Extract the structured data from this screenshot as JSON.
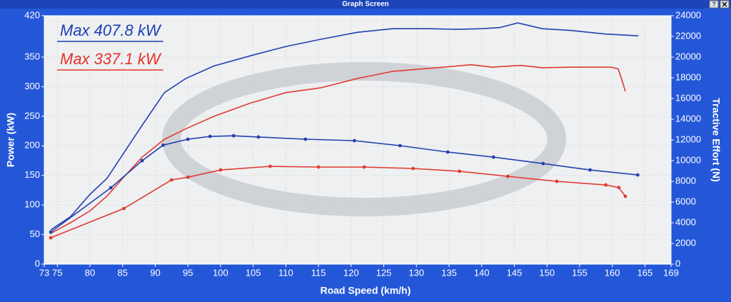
{
  "window": {
    "title": "Graph Screen",
    "help": "?"
  },
  "chart_data": {
    "type": "line",
    "xlabel": "Road Speed (km/h)",
    "ylabel": "Power (kW)",
    "y2label": "Tractive Effort (N)",
    "xlim": [
      73,
      169
    ],
    "xticks": [
      73,
      75,
      80,
      85,
      90,
      95,
      100,
      105,
      110,
      115,
      120,
      125,
      130,
      135,
      140,
      145,
      150,
      155,
      160,
      165,
      169
    ],
    "ylim": [
      0,
      420
    ],
    "yticks": [
      0,
      50,
      100,
      150,
      200,
      250,
      300,
      350,
      420
    ],
    "y2lim": [
      0,
      24000
    ],
    "y2ticks": [
      0,
      2000,
      4000,
      6000,
      8000,
      10000,
      12000,
      14000,
      16000,
      18000,
      20000,
      22000,
      24000
    ],
    "grid": true,
    "annotations": [
      {
        "text": "Max 407.8 kW",
        "color": "#1c3fb4"
      },
      {
        "text": "Max 337.1 kW",
        "color": "#e8302c"
      }
    ],
    "series": [
      {
        "color": "#2340b0",
        "axis": "y",
        "x": [
          74,
          77,
          80,
          82.6,
          85,
          88,
          91.4,
          94.7,
          99,
          104.5,
          110,
          115.3,
          121,
          126.4,
          132,
          136.2,
          140,
          142.8,
          145.5,
          149.3,
          153.7,
          159,
          164
        ],
        "values": [
          58,
          80,
          118,
          145,
          185,
          235,
          290,
          314,
          335,
          352,
          368,
          380,
          392,
          398,
          398,
          397,
          398,
          400,
          407.8,
          398,
          395,
          389,
          386
        ]
      },
      {
        "color": "#e23a32",
        "axis": "y",
        "x": [
          74,
          77,
          80,
          82.6,
          85,
          88,
          91.4,
          94.7,
          99,
          104.5,
          110,
          115.3,
          121,
          126.4,
          132,
          138.4,
          141.6,
          146,
          149.3,
          153.7,
          159.8,
          160.9,
          161.4,
          162
        ],
        "values": [
          52,
          70,
          90,
          115,
          145,
          181,
          211,
          229,
          250,
          272,
          290,
          298,
          314,
          326,
          331,
          337.1,
          333,
          336,
          332,
          333,
          333,
          330,
          314,
          292
        ]
      },
      {
        "color": "#2340b0",
        "axis": "y2",
        "markers": true,
        "x": [
          74,
          83.2,
          88,
          91.2,
          95,
          98.4,
          102,
          105.8,
          113,
          120.5,
          127.5,
          134.8,
          141.8,
          149.4,
          156.6,
          163.9
        ],
        "values": [
          3100,
          7380,
          10000,
          11500,
          12070,
          12340,
          12400,
          12280,
          12070,
          11930,
          11450,
          10830,
          10340,
          9720,
          9100,
          8620
        ]
      },
      {
        "color": "#e23a32",
        "axis": "y2",
        "markers": true,
        "x": [
          74,
          85.2,
          92.5,
          95,
          100,
          107.6,
          115,
          122,
          129.5,
          136.6,
          144,
          151.5,
          159,
          161,
          162
        ],
        "values": [
          2550,
          5380,
          8140,
          8400,
          9100,
          9450,
          9380,
          9380,
          9240,
          8970,
          8480,
          8000,
          7650,
          7400,
          6550
        ]
      }
    ]
  }
}
